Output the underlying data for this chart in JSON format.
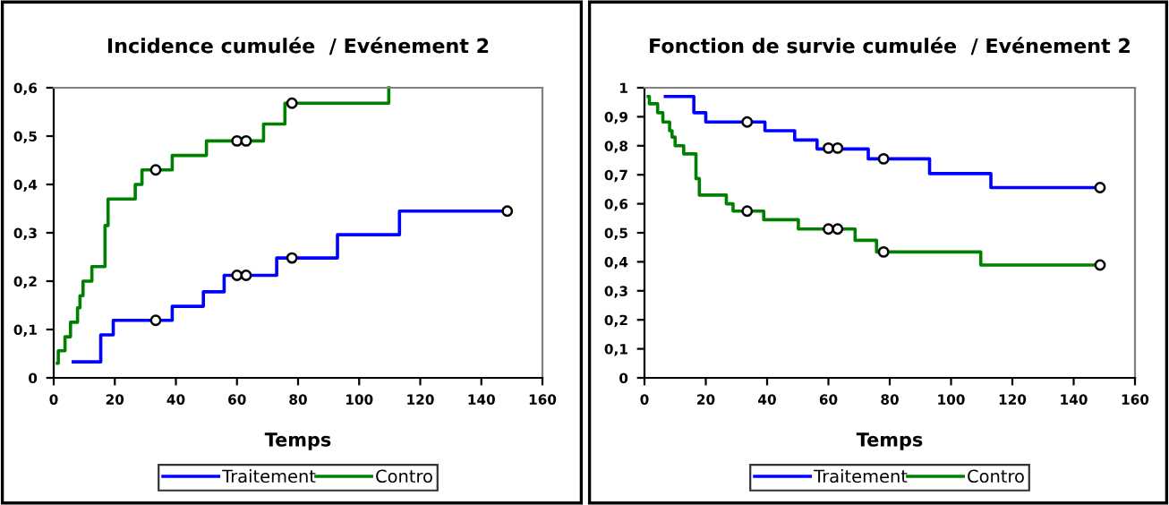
{
  "chart_data": [
    {
      "type": "step",
      "title": "Incidence cumulée  / Evénement 2",
      "xlabel": "Temps",
      "xlim": [
        0,
        160
      ],
      "xticks": [
        0,
        20,
        40,
        60,
        80,
        100,
        120,
        140,
        160
      ],
      "ylim": [
        0,
        0.6
      ],
      "yticks": [
        0,
        {
          "value": 0.1,
          "label": "0,1"
        },
        {
          "value": 0.2,
          "label": "0,2"
        },
        {
          "value": 0.3,
          "label": "0,3"
        },
        {
          "value": 0.4,
          "label": "0,4"
        },
        {
          "value": 0.5,
          "label": "0,5"
        },
        {
          "value": 0.6,
          "label": "0,6"
        }
      ],
      "grid": false,
      "legend": "bottom",
      "line_style": "solid",
      "series": [
        {
          "name": "Traitement",
          "color": "#0000ff",
          "x": [
            6.4,
            15.4,
            19.5,
            38.8,
            49,
            55.8,
            73,
            92.9,
            113.2,
            148.5
          ],
          "values": [
            0.033,
            0.089,
            0.119,
            0.148,
            0.178,
            0.212,
            0.248,
            0.296,
            0.345,
            0.345
          ]
        },
        {
          "name": "Contro",
          "color": "#008000",
          "x": [
            1.2,
            1.5,
            3.7,
            5.5,
            7.8,
            8.6,
            9.6,
            12.5,
            16.8,
            17.8,
            26.7,
            28.9,
            38.8,
            50,
            68.7,
            75.7,
            109.7
          ],
          "values": [
            0.03,
            0.056,
            0.085,
            0.115,
            0.145,
            0.17,
            0.2,
            0.23,
            0.315,
            0.37,
            0.4,
            0.43,
            0.46,
            0.49,
            0.525,
            0.568,
            0.6
          ]
        },
        {
          "type": "scatter",
          "marker": "circle",
          "color": "#000000",
          "x": [
            33.4,
            60,
            63,
            78,
            148.5
          ],
          "values": [
            0.119,
            0.212,
            0.212,
            0.248,
            0.345
          ]
        },
        {
          "type": "scatter",
          "marker": "circle",
          "color": "#000000",
          "x": [
            33.4,
            60,
            63,
            78
          ],
          "values": [
            0.43,
            0.49,
            0.49,
            0.568
          ]
        }
      ]
    },
    {
      "type": "step",
      "title": "Fonction de survie cumulée  / Evénement 2",
      "xlabel": "Temps",
      "xlim": [
        0,
        160
      ],
      "xticks": [
        0,
        20,
        40,
        60,
        80,
        100,
        120,
        140,
        160
      ],
      "ylim": [
        0,
        1
      ],
      "yticks": [
        0,
        {
          "value": 0.1,
          "label": "0,1"
        },
        {
          "value": 0.2,
          "label": "0,2"
        },
        {
          "value": 0.3,
          "label": "0,3"
        },
        {
          "value": 0.4,
          "label": "0,4"
        },
        {
          "value": 0.5,
          "label": "0,5"
        },
        {
          "value": 0.6,
          "label": "0,6"
        },
        {
          "value": 0.7,
          "label": "0,7"
        },
        {
          "value": 0.8,
          "label": "0,8"
        },
        {
          "value": 0.9,
          "label": "0,9"
        },
        1
      ],
      "grid": false,
      "legend": "bottom",
      "line_style": "solid",
      "series": [
        {
          "name": "Traitement",
          "color": "#0000ff",
          "x": [
            6.8,
            16.1,
            20,
            39.3,
            49,
            56.3,
            73,
            93,
            113,
            148.6
          ],
          "values": [
            0.97,
            0.914,
            0.882,
            0.852,
            0.82,
            0.789,
            0.755,
            0.704,
            0.656,
            0.656
          ]
        },
        {
          "name": "Contro",
          "color": "#008000",
          "x": [
            1.2,
            1.6,
            4.3,
            6,
            8.2,
            9,
            10,
            12.8,
            16.8,
            17.9,
            26.7,
            28.9,
            38.9,
            50.2,
            68.7,
            75.7,
            109.7,
            148.6
          ],
          "values": [
            0.97,
            0.945,
            0.914,
            0.882,
            0.852,
            0.83,
            0.8,
            0.772,
            0.687,
            0.63,
            0.6,
            0.575,
            0.545,
            0.513,
            0.474,
            0.434,
            0.389,
            0.389
          ]
        },
        {
          "type": "scatter",
          "marker": "circle",
          "color": "#000000",
          "x": [
            33.5,
            60,
            63,
            78,
            148.6
          ],
          "values": [
            0.882,
            0.792,
            0.792,
            0.755,
            0.656
          ]
        },
        {
          "type": "scatter",
          "marker": "circle",
          "color": "#000000",
          "x": [
            33.5,
            60,
            63,
            78,
            148.6
          ],
          "values": [
            0.575,
            0.513,
            0.513,
            0.434,
            0.389
          ]
        }
      ]
    }
  ]
}
